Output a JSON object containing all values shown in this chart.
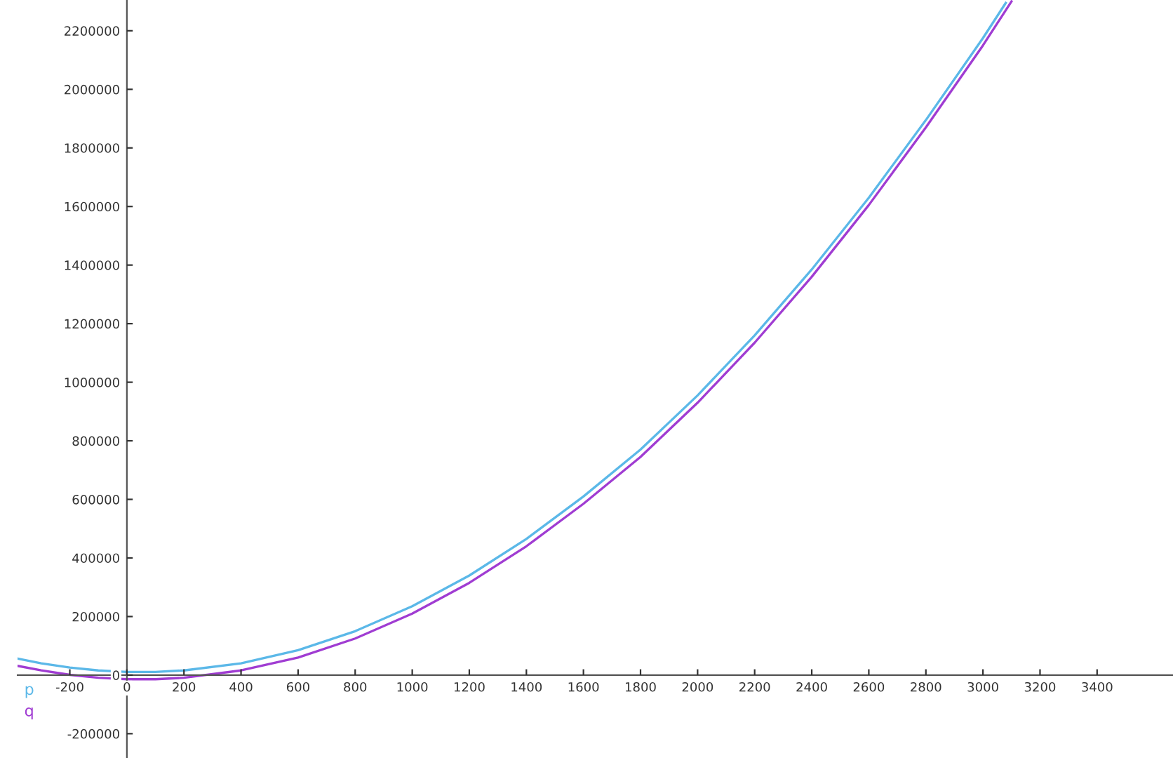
{
  "chart_data": {
    "type": "line",
    "series": [
      {
        "name": "p",
        "color": "#5bb8e8",
        "x": [
          -380,
          -300,
          -200,
          -100,
          0,
          100,
          200,
          400,
          600,
          800,
          1000,
          1200,
          1400,
          1600,
          1800,
          2000,
          2200,
          2400,
          2600,
          2800,
          3000,
          3080
        ],
        "values": [
          56000,
          40000,
          26000,
          16000,
          11000,
          11000,
          16000,
          40000,
          85000,
          150000,
          235000,
          340000,
          465000,
          610000,
          770000,
          955000,
          1160000,
          1385000,
          1630000,
          1895000,
          2175000,
          2295000
        ]
      },
      {
        "name": "q",
        "color": "#a03cd2",
        "x": [
          -380,
          -300,
          -200,
          -100,
          0,
          100,
          200,
          400,
          600,
          800,
          1000,
          1200,
          1400,
          1600,
          1800,
          2000,
          2200,
          2400,
          2600,
          2800,
          3000,
          3100
        ],
        "values": [
          31000,
          16000,
          1000,
          -9000,
          -14000,
          -14000,
          -9000,
          16000,
          60000,
          125000,
          210000,
          315000,
          440000,
          585000,
          745000,
          930000,
          1135000,
          1360000,
          1605000,
          1870000,
          2150000,
          2300000
        ]
      }
    ],
    "xlim": [
      -383,
      3666
    ],
    "ylim": [
      -283000,
      2305000
    ],
    "xticks": [
      -200,
      0,
      200,
      400,
      600,
      800,
      1000,
      1200,
      1400,
      1600,
      1800,
      2000,
      2200,
      2400,
      2600,
      2800,
      3000,
      3200,
      3400
    ],
    "yticks": [
      -200000,
      0,
      200000,
      400000,
      600000,
      800000,
      1000000,
      1200000,
      1400000,
      1600000,
      1800000,
      2000000,
      2200000
    ],
    "grid": false,
    "legend": false,
    "marker": "none",
    "line_style": "solid"
  }
}
